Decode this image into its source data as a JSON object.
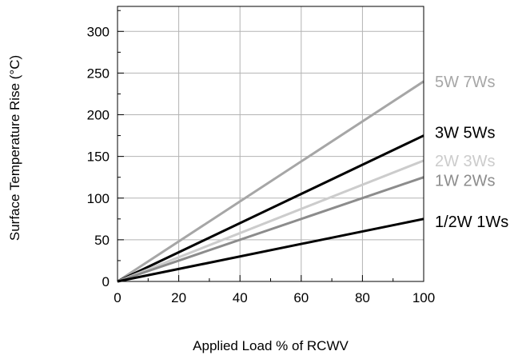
{
  "chart_data": {
    "type": "line",
    "xlabel": "Applied Load % of RCWV",
    "ylabel": "Surface Temperature Rise (°C)",
    "xlim": [
      0,
      100
    ],
    "ylim": [
      0,
      330
    ],
    "x_ticks": [
      0,
      20,
      40,
      60,
      80,
      100
    ],
    "y_ticks": [
      0,
      50,
      100,
      150,
      200,
      250,
      300
    ],
    "x_tick_labels": [
      "0",
      "20",
      "40",
      "60",
      "80",
      "100"
    ],
    "y_tick_labels": [
      "0",
      "50",
      "100",
      "150",
      "200",
      "250",
      "300"
    ],
    "grid": true,
    "legend": "inline-right",
    "series": [
      {
        "name": "5W 7Ws",
        "x": [
          0,
          100
        ],
        "y": [
          0,
          240
        ],
        "color": "#a6a6a6"
      },
      {
        "name": "3W 5Ws",
        "x": [
          0,
          100
        ],
        "y": [
          0,
          175
        ],
        "color": "#000000"
      },
      {
        "name": "2W 3Ws",
        "x": [
          0,
          100
        ],
        "y": [
          0,
          145
        ],
        "color": "#cccccc"
      },
      {
        "name": "1W 2Ws",
        "x": [
          0,
          100
        ],
        "y": [
          0,
          125
        ],
        "color": "#8c8c8c"
      },
      {
        "name": "1/2W 1Ws",
        "x": [
          0,
          100
        ],
        "y": [
          0,
          75
        ],
        "color": "#000000"
      }
    ]
  }
}
